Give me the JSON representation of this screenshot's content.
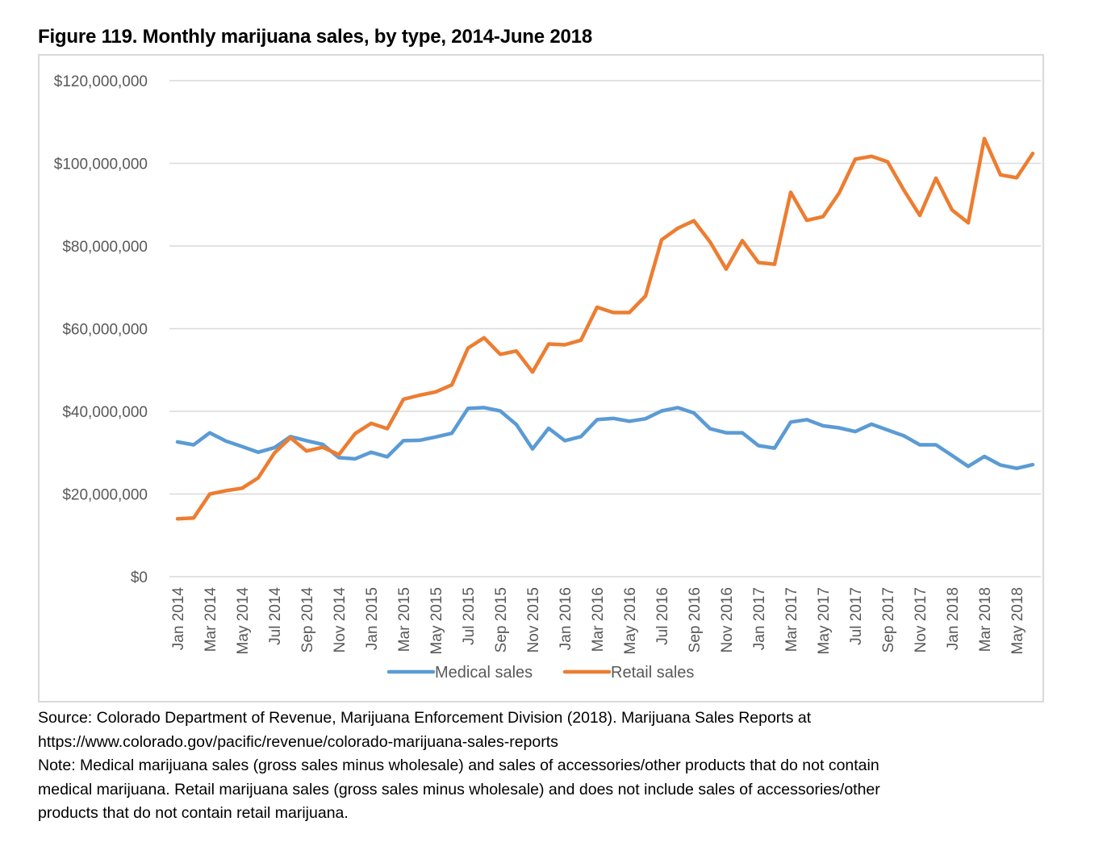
{
  "figure": {
    "title": "Figure 119. Monthly marijuana sales, by type, 2014-June 2018"
  },
  "chart_data": {
    "type": "line",
    "title": "Figure 119. Monthly marijuana sales, by type, 2014-June 2018",
    "xlabel": "",
    "ylabel": "",
    "ylim": [
      0,
      120000000
    ],
    "yticks": [
      0,
      20000000,
      40000000,
      60000000,
      80000000,
      100000000,
      120000000
    ],
    "ytick_labels": [
      "$0",
      "$20,000,000",
      "$40,000,000",
      "$60,000,000",
      "$80,000,000",
      "$100,000,000",
      "$120,000,000"
    ],
    "grid": true,
    "legend_position": "bottom",
    "x": [
      "Jan 2014",
      "Feb 2014",
      "Mar 2014",
      "Apr 2014",
      "May 2014",
      "Jun 2014",
      "Jul 2014",
      "Aug 2014",
      "Sep 2014",
      "Oct 2014",
      "Nov 2014",
      "Dec 2014",
      "Jan 2015",
      "Feb 2015",
      "Mar 2015",
      "Apr 2015",
      "May 2015",
      "Jun 2015",
      "Jul 2015",
      "Aug 2015",
      "Sep 2015",
      "Oct 2015",
      "Nov 2015",
      "Dec 2015",
      "Jan 2016",
      "Feb 2016",
      "Mar 2016",
      "Apr 2016",
      "May 2016",
      "Jun 2016",
      "Jul 2016",
      "Aug 2016",
      "Sep 2016",
      "Oct 2016",
      "Nov 2016",
      "Dec 2016",
      "Jan 2017",
      "Feb 2017",
      "Mar 2017",
      "Apr 2017",
      "May 2017",
      "Jun 2017",
      "Jul 2017",
      "Aug 2017",
      "Sep 2017",
      "Oct 2017",
      "Nov 2017",
      "Dec 2017",
      "Jan 2018",
      "Feb 2018",
      "Mar 2018",
      "Apr 2018",
      "May 2018",
      "Jun 2018"
    ],
    "xtick_labels": [
      "Jan 2014",
      "Mar 2014",
      "May 2014",
      "Jul 2014",
      "Sep 2014",
      "Nov 2014",
      "Jan 2015",
      "Mar 2015",
      "May 2015",
      "Jul 2015",
      "Sep 2015",
      "Nov 2015",
      "Jan 2016",
      "Mar 2016",
      "May 2016",
      "Jul 2016",
      "Sep 2016",
      "Nov 2016",
      "Jan 2017",
      "Mar 2017",
      "May 2017",
      "Jul 2017",
      "Sep 2017",
      "Nov 2017",
      "Jan 2018",
      "Mar 2018",
      "May 2018"
    ],
    "series": [
      {
        "name": "Medical sales",
        "color": "#5b9bd5",
        "values": [
          32600000,
          31900000,
          34800000,
          32800000,
          31500000,
          30100000,
          31200000,
          33900000,
          32900000,
          32000000,
          28800000,
          28500000,
          30100000,
          29000000,
          32900000,
          33000000,
          33800000,
          34700000,
          40700000,
          40900000,
          40100000,
          36800000,
          30900000,
          35900000,
          32900000,
          33900000,
          38000000,
          38300000,
          37600000,
          38200000,
          40100000,
          40900000,
          39600000,
          35800000,
          34800000,
          34800000,
          31700000,
          31100000,
          37400000,
          38000000,
          36500000,
          36000000,
          35100000,
          36900000,
          35500000,
          34100000,
          31900000,
          31900000,
          29300000,
          26700000,
          29100000,
          27000000,
          26200000,
          27100000
        ]
      },
      {
        "name": "Retail sales",
        "color": "#ed7d31",
        "values": [
          14000000,
          14200000,
          20000000,
          20800000,
          21400000,
          23900000,
          29900000,
          33600000,
          30400000,
          31300000,
          29500000,
          34600000,
          37100000,
          35800000,
          42900000,
          43900000,
          44700000,
          46400000,
          55300000,
          57800000,
          53800000,
          54600000,
          49500000,
          56300000,
          56100000,
          57200000,
          65200000,
          63900000,
          63900000,
          67900000,
          81500000,
          84300000,
          86100000,
          81000000,
          74400000,
          81300000,
          76000000,
          75600000,
          93000000,
          86200000,
          87100000,
          92800000,
          101000000,
          101700000,
          100400000,
          93600000,
          87400000,
          96400000,
          88700000,
          85600000,
          106000000,
          97200000,
          96500000,
          102400000
        ]
      }
    ]
  },
  "notes": {
    "source_line1": "Source: Colorado Department of Revenue, Marijuana Enforcement Division (2018). Marijuana Sales Reports at",
    "source_line2": "https://www.colorado.gov/pacific/revenue/colorado-marijuana-sales-reports",
    "note_line1": "Note: Medical marijuana sales (gross sales minus wholesale) and sales of accessories/other products that do not contain",
    "note_line2": "medical marijuana. Retail marijuana sales (gross sales minus wholesale) and does not include sales of accessories/other",
    "note_line3": "products that do not contain retail marijuana."
  }
}
